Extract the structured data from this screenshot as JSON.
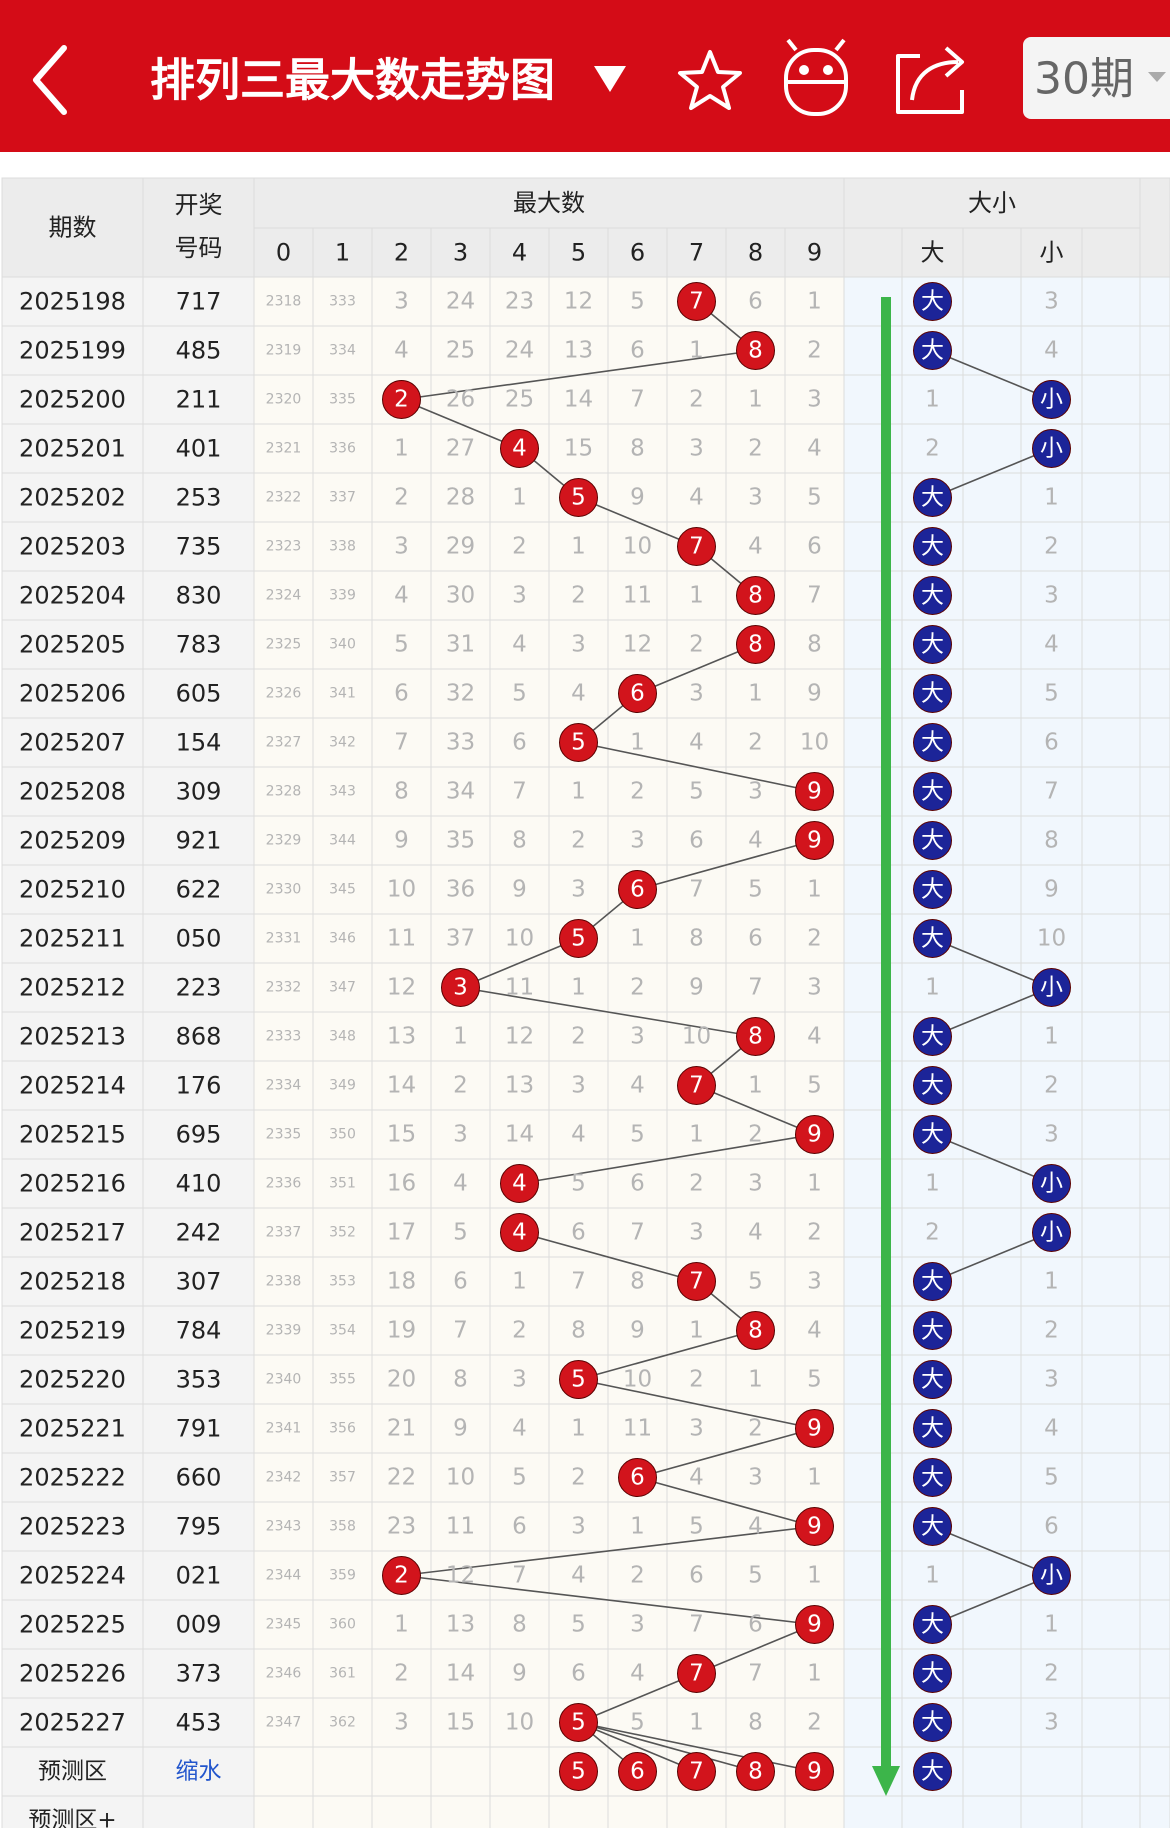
{
  "header": {
    "title": "排列三最大数走势图",
    "period_select": "30期"
  },
  "table": {
    "columns": {
      "period": "期数",
      "number": [
        "开奖",
        "号码"
      ],
      "max_group": "最大数",
      "digits": [
        0,
        1,
        2,
        3,
        4,
        5,
        6,
        7,
        8,
        9
      ],
      "size_group": "大小",
      "size": [
        "大",
        "小"
      ]
    },
    "rows": [
      {
        "period": "2025198",
        "number": "717",
        "cells": [
          2318,
          333,
          3,
          24,
          23,
          12,
          5,
          "7",
          6,
          1
        ],
        "size": [
          "大",
          3
        ]
      },
      {
        "period": "2025199",
        "number": "485",
        "cells": [
          2319,
          334,
          4,
          25,
          24,
          13,
          6,
          1,
          "8",
          2
        ],
        "size": [
          "大",
          4
        ]
      },
      {
        "period": "2025200",
        "number": "211",
        "cells": [
          2320,
          335,
          "2",
          26,
          25,
          14,
          7,
          2,
          1,
          3
        ],
        "size": [
          1,
          "小"
        ]
      },
      {
        "period": "2025201",
        "number": "401",
        "cells": [
          2321,
          336,
          1,
          27,
          "4",
          15,
          8,
          3,
          2,
          4
        ],
        "size": [
          2,
          "小"
        ]
      },
      {
        "period": "2025202",
        "number": "253",
        "cells": [
          2322,
          337,
          2,
          28,
          1,
          "5",
          9,
          4,
          3,
          5
        ],
        "size": [
          "大",
          1
        ]
      },
      {
        "period": "2025203",
        "number": "735",
        "cells": [
          2323,
          338,
          3,
          29,
          2,
          1,
          10,
          "7",
          4,
          6
        ],
        "size": [
          "大",
          2
        ]
      },
      {
        "period": "2025204",
        "number": "830",
        "cells": [
          2324,
          339,
          4,
          30,
          3,
          2,
          11,
          1,
          "8",
          7
        ],
        "size": [
          "大",
          3
        ]
      },
      {
        "period": "2025205",
        "number": "783",
        "cells": [
          2325,
          340,
          5,
          31,
          4,
          3,
          12,
          2,
          "8",
          8
        ],
        "size": [
          "大",
          4
        ]
      },
      {
        "period": "2025206",
        "number": "605",
        "cells": [
          2326,
          341,
          6,
          32,
          5,
          4,
          "6",
          3,
          1,
          9
        ],
        "size": [
          "大",
          5
        ]
      },
      {
        "period": "2025207",
        "number": "154",
        "cells": [
          2327,
          342,
          7,
          33,
          6,
          "5",
          1,
          4,
          2,
          10
        ],
        "size": [
          "大",
          6
        ]
      },
      {
        "period": "2025208",
        "number": "309",
        "cells": [
          2328,
          343,
          8,
          34,
          7,
          1,
          2,
          5,
          3,
          "9"
        ],
        "size": [
          "大",
          7
        ]
      },
      {
        "period": "2025209",
        "number": "921",
        "cells": [
          2329,
          344,
          9,
          35,
          8,
          2,
          3,
          6,
          4,
          "9"
        ],
        "size": [
          "大",
          8
        ]
      },
      {
        "period": "2025210",
        "number": "622",
        "cells": [
          2330,
          345,
          10,
          36,
          9,
          3,
          "6",
          7,
          5,
          1
        ],
        "size": [
          "大",
          9
        ]
      },
      {
        "period": "2025211",
        "number": "050",
        "cells": [
          2331,
          346,
          11,
          37,
          10,
          "5",
          1,
          8,
          6,
          2
        ],
        "size": [
          "大",
          10
        ]
      },
      {
        "period": "2025212",
        "number": "223",
        "cells": [
          2332,
          347,
          12,
          "3",
          11,
          1,
          2,
          9,
          7,
          3
        ],
        "size": [
          1,
          "小"
        ]
      },
      {
        "period": "2025213",
        "number": "868",
        "cells": [
          2333,
          348,
          13,
          1,
          12,
          2,
          3,
          10,
          "8",
          4
        ],
        "size": [
          "大",
          1
        ]
      },
      {
        "period": "2025214",
        "number": "176",
        "cells": [
          2334,
          349,
          14,
          2,
          13,
          3,
          4,
          "7",
          1,
          5
        ],
        "size": [
          "大",
          2
        ]
      },
      {
        "period": "2025215",
        "number": "695",
        "cells": [
          2335,
          350,
          15,
          3,
          14,
          4,
          5,
          1,
          2,
          "9"
        ],
        "size": [
          "大",
          3
        ]
      },
      {
        "period": "2025216",
        "number": "410",
        "cells": [
          2336,
          351,
          16,
          4,
          "4",
          5,
          6,
          2,
          3,
          1
        ],
        "size": [
          1,
          "小"
        ]
      },
      {
        "period": "2025217",
        "number": "242",
        "cells": [
          2337,
          352,
          17,
          5,
          "4",
          6,
          7,
          3,
          4,
          2
        ],
        "size": [
          2,
          "小"
        ]
      },
      {
        "period": "2025218",
        "number": "307",
        "cells": [
          2338,
          353,
          18,
          6,
          1,
          7,
          8,
          "7",
          5,
          3
        ],
        "size": [
          "大",
          1
        ]
      },
      {
        "period": "2025219",
        "number": "784",
        "cells": [
          2339,
          354,
          19,
          7,
          2,
          8,
          9,
          1,
          "8",
          4
        ],
        "size": [
          "大",
          2
        ]
      },
      {
        "period": "2025220",
        "number": "353",
        "cells": [
          2340,
          355,
          20,
          8,
          3,
          "5",
          10,
          2,
          1,
          5
        ],
        "size": [
          "大",
          3
        ]
      },
      {
        "period": "2025221",
        "number": "791",
        "cells": [
          2341,
          356,
          21,
          9,
          4,
          1,
          11,
          3,
          2,
          "9"
        ],
        "size": [
          "大",
          4
        ]
      },
      {
        "period": "2025222",
        "number": "660",
        "cells": [
          2342,
          357,
          22,
          10,
          5,
          2,
          "6",
          4,
          3,
          1
        ],
        "size": [
          "大",
          5
        ]
      },
      {
        "period": "2025223",
        "number": "795",
        "cells": [
          2343,
          358,
          23,
          11,
          6,
          3,
          1,
          5,
          4,
          "9"
        ],
        "size": [
          "大",
          6
        ]
      },
      {
        "period": "2025224",
        "number": "021",
        "cells": [
          2344,
          359,
          "2",
          12,
          7,
          4,
          2,
          6,
          5,
          1
        ],
        "size": [
          1,
          "小"
        ]
      },
      {
        "period": "2025225",
        "number": "009",
        "cells": [
          2345,
          360,
          1,
          13,
          8,
          5,
          3,
          7,
          6,
          "9"
        ],
        "size": [
          "大",
          1
        ]
      },
      {
        "period": "2025226",
        "number": "373",
        "cells": [
          2346,
          361,
          2,
          14,
          9,
          6,
          4,
          "7",
          7,
          1
        ],
        "size": [
          "大",
          2
        ]
      },
      {
        "period": "2025227",
        "number": "453",
        "cells": [
          2347,
          362,
          3,
          15,
          10,
          "5",
          5,
          1,
          8,
          2
        ],
        "size": [
          "大",
          3
        ]
      }
    ],
    "forecast": {
      "label": "预测区",
      "method": "缩水",
      "cells": [
        null,
        null,
        null,
        null,
        null,
        "5",
        "6",
        "7",
        "8",
        "9"
      ],
      "size": [
        "大",
        null
      ]
    },
    "forecast_plus": {
      "label": "预测区+"
    }
  }
}
